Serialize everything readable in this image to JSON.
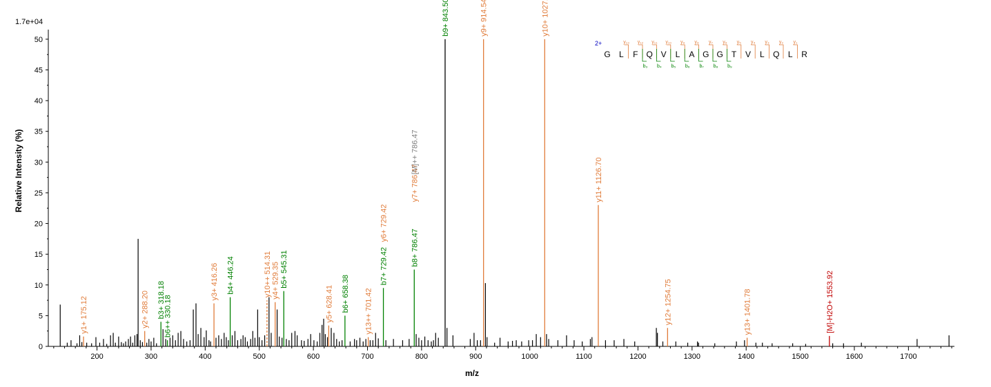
{
  "chart_data": {
    "type": "bar",
    "subtype": "mass-spectrum",
    "title": "",
    "intensity_scale_label": "1.7e+04",
    "xlabel": "m/z",
    "ylabel": "Relative   Intensity (%)",
    "xlim": [
      110,
      1785
    ],
    "ylim": [
      0,
      51
    ],
    "x_ticks_major": [
      200,
      300,
      400,
      500,
      600,
      700,
      800,
      900,
      1000,
      1100,
      1200,
      1300,
      1400,
      1500,
      1600,
      1700
    ],
    "y_ticks": [
      0,
      5,
      10,
      15,
      20,
      25,
      30,
      35,
      40,
      45,
      50
    ],
    "colors": {
      "unassigned": "#000000",
      "y_ion": "#e07b39",
      "b_ion": "#008000",
      "precursor": "#808080",
      "neutral_loss": "#c00000",
      "charge": "#0000c0"
    },
    "annotated_peaks": [
      {
        "mz": 175.12,
        "intensity": 1.6,
        "label": "y1+ 175.12",
        "ion": "y"
      },
      {
        "mz": 288.2,
        "intensity": 2.5,
        "label": "y2+ 288.20",
        "ion": "y"
      },
      {
        "mz": 318.18,
        "intensity": 4.0,
        "label": "b3+ 318.18",
        "ion": "b"
      },
      {
        "mz": 330.18,
        "intensity": 1.0,
        "label": "b6++ 330.18",
        "ion": "b"
      },
      {
        "mz": 416.26,
        "intensity": 7.0,
        "label": "y3+ 416.26",
        "ion": "y"
      },
      {
        "mz": 446.24,
        "intensity": 8.0,
        "label": "b4+ 446.24",
        "ion": "b"
      },
      {
        "mz": 514.31,
        "intensity": 7.5,
        "label": "y10++ 514.31",
        "ion": "y",
        "dashed": true
      },
      {
        "mz": 529.35,
        "intensity": 7.2,
        "label": "y4+ 529.35",
        "ion": "y"
      },
      {
        "mz": 545.31,
        "intensity": 9.0,
        "label": "b5+ 545.31",
        "ion": "b"
      },
      {
        "mz": 628.41,
        "intensity": 3.4,
        "label": "y5+ 628.41",
        "ion": "y"
      },
      {
        "mz": 658.38,
        "intensity": 5.0,
        "label": "b6+ 658.38",
        "ion": "b"
      },
      {
        "mz": 701.42,
        "intensity": 1.5,
        "label": "y13++ 701.42",
        "ion": "y"
      },
      {
        "mz": 729.42,
        "intensity": 9.5,
        "label": "b7+ 729.42",
        "ion": "b"
      },
      {
        "mz": 729.42,
        "intensity": 17.0,
        "label": "y6+ 729.42",
        "ion": "y",
        "label_only": true
      },
      {
        "mz": 786.47,
        "intensity": 12.5,
        "label": "b8+ 786.47",
        "ion": "b"
      },
      {
        "mz": 786.47,
        "intensity": 23.5,
        "label": "y7+ 786.47",
        "ion": "y",
        "label_only": true
      },
      {
        "mz": 786.47,
        "intensity": 28.0,
        "label": "[M]++ 786.47",
        "ion": "precursor",
        "label_only": true
      },
      {
        "mz": 843.5,
        "intensity": 50.0,
        "label": "b9+ 843.50",
        "ion": "b",
        "bar_color": "unassigned"
      },
      {
        "mz": 914.54,
        "intensity": 50.0,
        "label": "y9+ 914.54",
        "ion": "y"
      },
      {
        "mz": 1027.62,
        "intensity": 50.0,
        "label": "y10+ 1027.62",
        "ion": "y"
      },
      {
        "mz": 1126.7,
        "intensity": 23.0,
        "label": "y11+ 1126.70",
        "ion": "y"
      },
      {
        "mz": 1254.75,
        "intensity": 3.0,
        "label": "y12+ 1254.75",
        "ion": "y"
      },
      {
        "mz": 1401.78,
        "intensity": 1.4,
        "label": "y13+ 1401.78",
        "ion": "y"
      },
      {
        "mz": 1553.92,
        "intensity": 1.7,
        "label": "[M]-H2O+ 1553.92",
        "ion": "neutral_loss"
      }
    ],
    "unannotated_peaks": [
      [
        132,
        6.8
      ],
      [
        145,
        0.6
      ],
      [
        152,
        1.0
      ],
      [
        163,
        0.5
      ],
      [
        168,
        1.8
      ],
      [
        172,
        0.7
      ],
      [
        181,
        0.6
      ],
      [
        190,
        0.5
      ],
      [
        198,
        1.5
      ],
      [
        205,
        0.6
      ],
      [
        212,
        1.2
      ],
      [
        218,
        0.4
      ],
      [
        225,
        1.8
      ],
      [
        230,
        2.2
      ],
      [
        234,
        0.6
      ],
      [
        240,
        1.6
      ],
      [
        245,
        0.7
      ],
      [
        249,
        0.5
      ],
      [
        253,
        0.8
      ],
      [
        258,
        1.2
      ],
      [
        262,
        1.6
      ],
      [
        266,
        0.6
      ],
      [
        270,
        1.8
      ],
      [
        274,
        2.0
      ],
      [
        276,
        17.5
      ],
      [
        280,
        1.0
      ],
      [
        284,
        0.7
      ],
      [
        292,
        0.6
      ],
      [
        296,
        1.2
      ],
      [
        300,
        0.8
      ],
      [
        305,
        1.4
      ],
      [
        310,
        0.5
      ],
      [
        322,
        2.8
      ],
      [
        327,
        1.2
      ],
      [
        335,
        1.4
      ],
      [
        340,
        1.8
      ],
      [
        345,
        1.0
      ],
      [
        350,
        2.2
      ],
      [
        355,
        2.5
      ],
      [
        360,
        1.2
      ],
      [
        366,
        0.8
      ],
      [
        372,
        1.0
      ],
      [
        378,
        6.0
      ],
      [
        383,
        7.0
      ],
      [
        387,
        2.0
      ],
      [
        392,
        3.0
      ],
      [
        398,
        1.5
      ],
      [
        402,
        2.6
      ],
      [
        407,
        1.0
      ],
      [
        410,
        0.8
      ],
      [
        420,
        1.4
      ],
      [
        425,
        1.8
      ],
      [
        430,
        1.2
      ],
      [
        435,
        2.2
      ],
      [
        439,
        1.5
      ],
      [
        443,
        1.0
      ],
      [
        450,
        1.8
      ],
      [
        455,
        2.5
      ],
      [
        460,
        1.0
      ],
      [
        466,
        1.2
      ],
      [
        470,
        1.8
      ],
      [
        474,
        1.5
      ],
      [
        478,
        0.8
      ],
      [
        484,
        1.2
      ],
      [
        488,
        2.5
      ],
      [
        492,
        1.4
      ],
      [
        497,
        6.0
      ],
      [
        500,
        1.5
      ],
      [
        505,
        1.0
      ],
      [
        510,
        1.8
      ],
      [
        518,
        8.0
      ],
      [
        522,
        2.2
      ],
      [
        533,
        6.0
      ],
      [
        537,
        1.6
      ],
      [
        542,
        1.4
      ],
      [
        550,
        1.2
      ],
      [
        555,
        1.0
      ],
      [
        560,
        2.2
      ],
      [
        566,
        2.5
      ],
      [
        570,
        1.8
      ],
      [
        578,
        1.0
      ],
      [
        583,
        0.9
      ],
      [
        590,
        1.2
      ],
      [
        595,
        2.0
      ],
      [
        601,
        1.0
      ],
      [
        607,
        0.8
      ],
      [
        612,
        2.2
      ],
      [
        616,
        3.5
      ],
      [
        619,
        4.5
      ],
      [
        622,
        2.0
      ],
      [
        626,
        1.5
      ],
      [
        633,
        3.0
      ],
      [
        638,
        2.2
      ],
      [
        643,
        1.2
      ],
      [
        648,
        0.8
      ],
      [
        653,
        1.0
      ],
      [
        668,
        0.8
      ],
      [
        676,
        1.2
      ],
      [
        680,
        1.0
      ],
      [
        686,
        1.4
      ],
      [
        692,
        0.8
      ],
      [
        697,
        1.2
      ],
      [
        705,
        1.0
      ],
      [
        710,
        1.0
      ],
      [
        715,
        2.2
      ],
      [
        720,
        1.3
      ],
      [
        734,
        1.0
      ],
      [
        748,
        1.2
      ],
      [
        765,
        1.0
      ],
      [
        777,
        1.2
      ],
      [
        790,
        2.0
      ],
      [
        795,
        1.4
      ],
      [
        800,
        1.0
      ],
      [
        806,
        1.6
      ],
      [
        812,
        1.0
      ],
      [
        818,
        0.8
      ],
      [
        822,
        1.0
      ],
      [
        826,
        2.2
      ],
      [
        831,
        1.4
      ],
      [
        847,
        3.0
      ],
      [
        858,
        1.8
      ],
      [
        890,
        1.2
      ],
      [
        897,
        2.2
      ],
      [
        903,
        1.0
      ],
      [
        909,
        1.0
      ],
      [
        918,
        10.3
      ],
      [
        921,
        1.5
      ],
      [
        935,
        0.6
      ],
      [
        945,
        1.4
      ],
      [
        960,
        0.8
      ],
      [
        968,
        0.9
      ],
      [
        975,
        1.0
      ],
      [
        985,
        0.8
      ],
      [
        998,
        1.0
      ],
      [
        1005,
        1.0
      ],
      [
        1012,
        2.0
      ],
      [
        1020,
        1.5
      ],
      [
        1031,
        2.0
      ],
      [
        1035,
        1.2
      ],
      [
        1052,
        1.0
      ],
      [
        1068,
        1.8
      ],
      [
        1082,
        1.0
      ],
      [
        1097,
        0.8
      ],
      [
        1112,
        1.2
      ],
      [
        1115,
        1.5
      ],
      [
        1140,
        1.0
      ],
      [
        1156,
        1.0
      ],
      [
        1174,
        1.2
      ],
      [
        1194,
        0.8
      ],
      [
        1234,
        3.0
      ],
      [
        1236,
        2.2
      ],
      [
        1246,
        0.8
      ],
      [
        1270,
        0.8
      ],
      [
        1292,
        0.6
      ],
      [
        1310,
        0.8
      ],
      [
        1312,
        0.6
      ],
      [
        1342,
        0.5
      ],
      [
        1382,
        0.8
      ],
      [
        1397,
        1.0
      ],
      [
        1418,
        0.6
      ],
      [
        1430,
        0.6
      ],
      [
        1448,
        0.5
      ],
      [
        1486,
        0.5
      ],
      [
        1510,
        0.4
      ],
      [
        1560,
        0.5
      ],
      [
        1580,
        0.5
      ],
      [
        1613,
        0.6
      ],
      [
        1716,
        1.2
      ],
      [
        1775,
        1.8
      ]
    ],
    "sequence_map": {
      "charge_label": "2+",
      "residues": [
        "G",
        "L",
        "F",
        "Q",
        "V",
        "L",
        "A",
        "G",
        "G",
        "T",
        "V",
        "L",
        "Q",
        "L",
        "R"
      ],
      "y_ions": [
        "y₁₃",
        "y₁₂",
        "y₁₁",
        "y₁₀",
        "y₉",
        "y₈",
        "y₇",
        "y₆",
        "y₅",
        "y₄",
        "y₃",
        "y₂",
        "y₁"
      ],
      "b_ions": [
        "b₃",
        "b₄",
        "b₅",
        "b₆",
        "b₇",
        "b₈",
        "b₉"
      ]
    }
  }
}
